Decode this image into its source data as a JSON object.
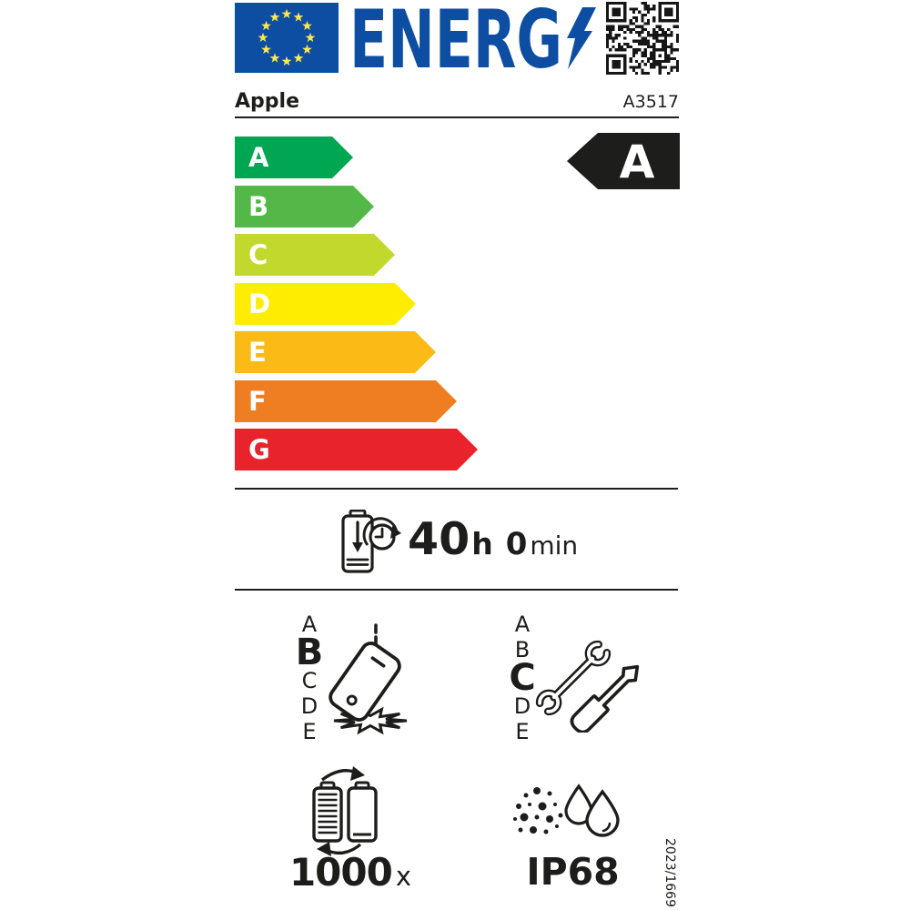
{
  "colors": {
    "eu_blue": "#0d4ea2",
    "star_yellow": "#fae84d",
    "ink": "#1d1d1b",
    "arrow_text": "#ffffff",
    "indicator_bg": "#1d1d1b"
  },
  "header": {
    "logo_text": "ENERG",
    "brand": "Apple",
    "model": "A3517"
  },
  "energy_scale": {
    "classes": [
      {
        "label": "A",
        "color": "#00a651"
      },
      {
        "label": "B",
        "color": "#53b847"
      },
      {
        "label": "C",
        "color": "#c3d82d"
      },
      {
        "label": "D",
        "color": "#ffed00"
      },
      {
        "label": "E",
        "color": "#fbba16"
      },
      {
        "label": "F",
        "color": "#ef7d22"
      },
      {
        "label": "G",
        "color": "#e8232c"
      }
    ],
    "rating": "A"
  },
  "battery_endurance": {
    "hours": "40",
    "hours_unit": "h",
    "minutes": "0",
    "minutes_unit": "min"
  },
  "drop_resistance": {
    "scale": [
      "A",
      "B",
      "C",
      "D",
      "E"
    ],
    "rating": "B"
  },
  "repairability": {
    "scale": [
      "A",
      "B",
      "C",
      "D",
      "E"
    ],
    "rating": "C"
  },
  "battery_cycles": {
    "value": "1000",
    "unit": "x"
  },
  "ingress_protection": {
    "value": "IP68"
  },
  "regulation": "2023/1669",
  "icons": {
    "eu-flag": "blue rectangle with 12-star circle",
    "energy-lightning-bolt": "blue lightning bolt",
    "qr-code": "qr pattern",
    "battery-clock-icon": "battery with down arrow and clock cycle",
    "phone-drop-icon": "falling phone with impact burst",
    "repair-tools-icon": "wrench and screwdriver",
    "battery-cycle-icon": "two batteries with cycle arrows",
    "dust-water-icon": "dust particles and water drops"
  }
}
